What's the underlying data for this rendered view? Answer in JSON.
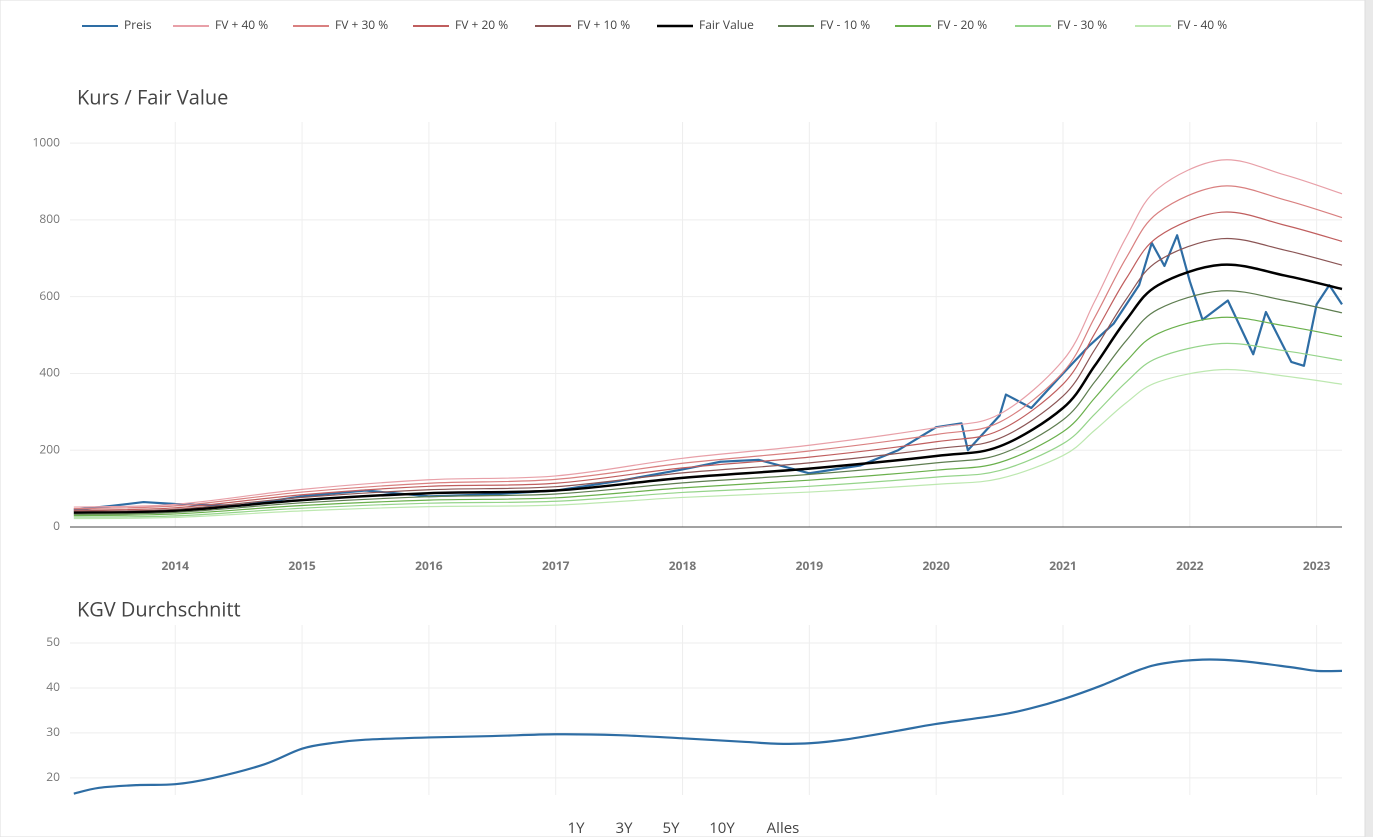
{
  "chart_data": [
    {
      "type": "line",
      "title": "Kurs / Fair Value",
      "x": [
        2013.2,
        2014,
        2015,
        2016,
        2017,
        2018,
        2019,
        2020,
        2020.5,
        2021,
        2021.25,
        2021.5,
        2021.75,
        2022.25,
        2022.75,
        2023.2
      ],
      "series": [
        {
          "name": "Preis",
          "color": "#2e6da4",
          "x": [
            2013.2,
            2013.5,
            2013.75,
            2014,
            2014.5,
            2015,
            2015.5,
            2016,
            2016.5,
            2017,
            2017.5,
            2018,
            2018.3,
            2018.6,
            2019,
            2019.4,
            2019.7,
            2020,
            2020.2,
            2020.25,
            2020.5,
            2020.55,
            2020.75,
            2021,
            2021.2,
            2021.4,
            2021.6,
            2021.7,
            2021.8,
            2021.9,
            2022,
            2022.1,
            2022.3,
            2022.5,
            2022.6,
            2022.8,
            2022.9,
            2023,
            2023.1,
            2023.2
          ],
          "values": [
            45,
            55,
            65,
            60,
            55,
            80,
            95,
            80,
            85,
            95,
            120,
            150,
            170,
            175,
            140,
            160,
            200,
            260,
            270,
            200,
            290,
            345,
            310,
            400,
            470,
            530,
            630,
            740,
            680,
            760,
            640,
            540,
            590,
            450,
            560,
            430,
            420,
            580,
            630,
            580
          ]
        },
        {
          "name": "FV + 40 %",
          "color": "#e8a0a8",
          "values": [
            52,
            59,
            98,
            123,
            133,
            179,
            213,
            259,
            294,
            434,
            588,
            756,
            882,
            956,
            917,
            868
          ]
        },
        {
          "name": "FV + 30 %",
          "color": "#d98080",
          "values": [
            48,
            55,
            91,
            114,
            124,
            166,
            198,
            241,
            273,
            403,
            546,
            702,
            819,
            888,
            852,
            806
          ]
        },
        {
          "name": "FV + 20 %",
          "color": "#c05e5e",
          "values": [
            44,
            50,
            84,
            106,
            114,
            154,
            182,
            222,
            252,
            372,
            504,
            648,
            756,
            820,
            786,
            744
          ]
        },
        {
          "name": "FV + 10 %",
          "color": "#8b5555",
          "values": [
            41,
            46,
            77,
            97,
            105,
            141,
            167,
            204,
            231,
            341,
            462,
            594,
            693,
            751,
            721,
            682
          ]
        },
        {
          "name": "Fair Value",
          "color": "#000000",
          "values": [
            37,
            42,
            70,
            88,
            95,
            128,
            152,
            185,
            210,
            310,
            420,
            540,
            630,
            683,
            655,
            620
          ]
        },
        {
          "name": "FV - 10 %",
          "color": "#5e7d50",
          "values": [
            33,
            38,
            63,
            79,
            86,
            115,
            137,
            167,
            189,
            279,
            378,
            486,
            567,
            615,
            590,
            558
          ]
        },
        {
          "name": "FV - 20 %",
          "color": "#6ab04c",
          "values": [
            30,
            34,
            56,
            70,
            76,
            102,
            122,
            148,
            168,
            248,
            336,
            432,
            504,
            546,
            524,
            496
          ]
        },
        {
          "name": "FV - 30 %",
          "color": "#95d48a",
          "values": [
            26,
            29,
            49,
            62,
            67,
            90,
            106,
            130,
            147,
            217,
            294,
            378,
            441,
            478,
            459,
            434
          ]
        },
        {
          "name": "FV - 40 %",
          "color": "#bde8b0",
          "values": [
            22,
            25,
            42,
            53,
            57,
            77,
            91,
            111,
            126,
            186,
            252,
            324,
            378,
            410,
            393,
            372
          ]
        }
      ],
      "xlim": [
        2013.17,
        2023.2
      ],
      "xticks": [
        2014,
        2015,
        2016,
        2017,
        2018,
        2019,
        2020,
        2021,
        2022,
        2023
      ],
      "ylim": [
        0,
        1055
      ],
      "yticks": [
        0,
        200,
        400,
        600,
        800,
        1000
      ],
      "grid": true
    },
    {
      "type": "line",
      "title": "KGV Durchschnitt",
      "x": [
        2013.2,
        2013.4,
        2013.7,
        2014,
        2014.3,
        2014.7,
        2015,
        2015.25,
        2015.5,
        2016,
        2016.5,
        2017,
        2017.5,
        2018,
        2018.5,
        2018.75,
        2019,
        2019.3,
        2019.7,
        2020,
        2020.5,
        2020.75,
        2021,
        2021.3,
        2021.6,
        2021.8,
        2022.1,
        2022.4,
        2022.8,
        2023,
        2023.2
      ],
      "series": [
        {
          "color": "#2e6da4",
          "values": [
            16.5,
            17.8,
            18.4,
            18.6,
            20,
            23,
            26.5,
            27.8,
            28.5,
            29,
            29.3,
            29.7,
            29.5,
            28.8,
            28,
            27.6,
            27.7,
            28.6,
            30.5,
            32,
            34,
            35.5,
            37.5,
            40.5,
            44,
            45.5,
            46.3,
            46,
            44.6,
            43.8,
            43.8
          ]
        }
      ],
      "xlim": [
        2013.17,
        2023.2
      ],
      "xticks": [
        2014,
        2015,
        2016,
        2017,
        2018,
        2019,
        2020,
        2021,
        2022,
        2023
      ],
      "ylim": [
        16.2,
        54
      ],
      "yticks": [
        20,
        30,
        40,
        50
      ],
      "grid": true
    }
  ],
  "range_buttons": [
    "1Y",
    "3Y",
    "5Y",
    "10Y",
    "Alles"
  ],
  "range_active": 3
}
